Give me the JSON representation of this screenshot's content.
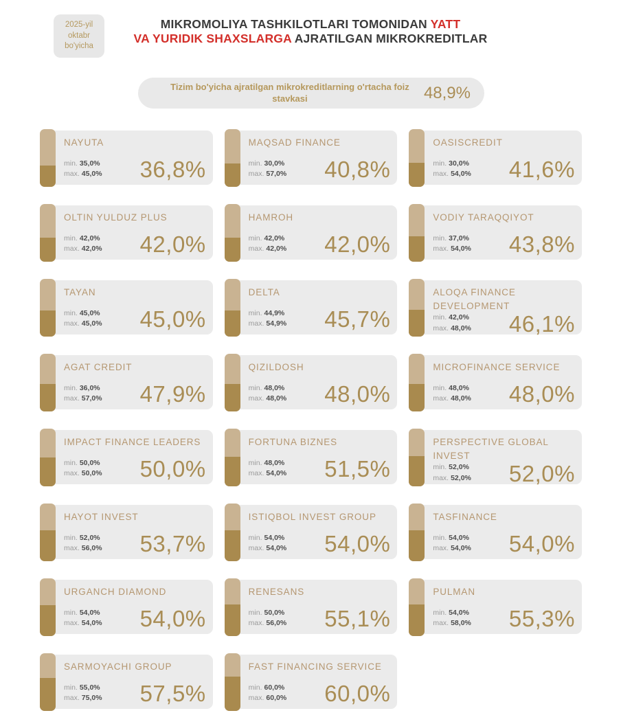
{
  "badge": {
    "line1": "2025-yil",
    "line2": "oktabr",
    "line3": "bo'yicha"
  },
  "title": {
    "line1_black": "MIKROMOLIYA TASHKILOTLARI TOMONIDAN ",
    "line1_red": "YATT",
    "line2_red": "VA YURIDIK SHAXSLARGA",
    "line2_black": " AJRATILGAN MIKROKREDITLAR"
  },
  "summary": {
    "label": "Tizim bo'yicha ajratilgan mikrokreditlarning o'rtacha foiz stavkasi",
    "value": "48,9%"
  },
  "labels": {
    "min": "min.",
    "max": "max."
  },
  "colors": {
    "gold_dark": "#a98a4e",
    "gold_light": "#c9b392",
    "gold_text": "#b59771",
    "red_accent": "#d32f2a",
    "card_bg": "#ebebeb",
    "title_text": "#3b3b3b"
  },
  "cards": [
    {
      "name": "NAYUTA",
      "min": "35,0%",
      "max": "45,0%",
      "rate": "36,8%"
    },
    {
      "name": "MAQSAD FINANCE",
      "min": "30,0%",
      "max": "57,0%",
      "rate": "40,8%"
    },
    {
      "name": "OASISCREDIT",
      "min": "30,0%",
      "max": "54,0%",
      "rate": "41,6%"
    },
    {
      "name": "OLTIN YULDUZ PLUS",
      "min": "42,0%",
      "max": "42,0%",
      "rate": "42,0%"
    },
    {
      "name": "HAMROH",
      "min": "42,0%",
      "max": "42,0%",
      "rate": "42,0%"
    },
    {
      "name": "VODIY TARAQQIYOT",
      "min": "37,0%",
      "max": "54,0%",
      "rate": "43,8%"
    },
    {
      "name": "TAYAN",
      "min": "45,0%",
      "max": "45,0%",
      "rate": "45,0%"
    },
    {
      "name": "DELTA",
      "min": "44,9%",
      "max": "54,9%",
      "rate": "45,7%"
    },
    {
      "name": "ALOQA FINANCE DEVELOPMENT",
      "min": "42,0%",
      "max": "48,0%",
      "rate": "46,1%"
    },
    {
      "name": "AGAT CREDIT",
      "min": "36,0%",
      "max": "57,0%",
      "rate": "47,9%"
    },
    {
      "name": "QIZILDOSH",
      "min": "48,0%",
      "max": "48,0%",
      "rate": "48,0%"
    },
    {
      "name": "MICROFINANCE SERVICE",
      "min": "48,0%",
      "max": "48,0%",
      "rate": "48,0%"
    },
    {
      "name": "IMPACT FINANCE LEADERS",
      "min": "50,0%",
      "max": "50,0%",
      "rate": "50,0%"
    },
    {
      "name": "FORTUNA BIZNES",
      "min": "48,0%",
      "max": "54,0%",
      "rate": "51,5%"
    },
    {
      "name": "PERSPECTIVE GLOBAL INVEST",
      "min": "52,0%",
      "max": "52,0%",
      "rate": "52,0%"
    },
    {
      "name": "HAYOT INVEST",
      "min": "52,0%",
      "max": "56,0%",
      "rate": "53,7%"
    },
    {
      "name": "ISTIQBOL INVEST GROUP",
      "min": "54,0%",
      "max": "54,0%",
      "rate": "54,0%"
    },
    {
      "name": "TASFINANCE",
      "min": "54,0%",
      "max": "54,0%",
      "rate": "54,0%"
    },
    {
      "name": "URGANCH DIAMOND",
      "min": "54,0%",
      "max": "54,0%",
      "rate": "54,0%"
    },
    {
      "name": "RENESANS",
      "min": "50,0%",
      "max": "56,0%",
      "rate": "55,1%"
    },
    {
      "name": "PULMAN",
      "min": "54,0%",
      "max": "58,0%",
      "rate": "55,3%"
    },
    {
      "name": "SARMOYACHI GROUP",
      "min": "55,0%",
      "max": "75,0%",
      "rate": "57,5%"
    },
    {
      "name": "FAST FINANCING SERVICE",
      "min": "60,0%",
      "max": "60,0%",
      "rate": "60,0%"
    }
  ],
  "chart_data": {
    "type": "table",
    "title": "MIKROMOLIYA TASHKILOTLARI TOMONIDAN YATT VA YURIDIK SHAXSLARGA AJRATILGAN MIKROKREDITLAR",
    "subtitle": "2025-yil oktabr bo'yicha",
    "system_average_label": "Tizim bo'yicha ajratilgan mikrokreditlarning o'rtacha foiz stavkasi",
    "system_average_percent": 48.9,
    "columns": [
      "organization",
      "min_percent",
      "max_percent",
      "avg_percent"
    ],
    "rows": [
      [
        "NAYUTA",
        35.0,
        45.0,
        36.8
      ],
      [
        "MAQSAD FINANCE",
        30.0,
        57.0,
        40.8
      ],
      [
        "OASISCREDIT",
        30.0,
        54.0,
        41.6
      ],
      [
        "OLTIN YULDUZ PLUS",
        42.0,
        42.0,
        42.0
      ],
      [
        "HAMROH",
        42.0,
        42.0,
        42.0
      ],
      [
        "VODIY TARAQQIYOT",
        37.0,
        54.0,
        43.8
      ],
      [
        "TAYAN",
        45.0,
        45.0,
        45.0
      ],
      [
        "DELTA",
        44.9,
        54.9,
        45.7
      ],
      [
        "ALOQA FINANCE DEVELOPMENT",
        42.0,
        48.0,
        46.1
      ],
      [
        "AGAT CREDIT",
        36.0,
        57.0,
        47.9
      ],
      [
        "QIZILDOSH",
        48.0,
        48.0,
        48.0
      ],
      [
        "MICROFINANCE SERVICE",
        48.0,
        48.0,
        48.0
      ],
      [
        "IMPACT FINANCE LEADERS",
        50.0,
        50.0,
        50.0
      ],
      [
        "FORTUNA BIZNES",
        48.0,
        54.0,
        51.5
      ],
      [
        "PERSPECTIVE GLOBAL INVEST",
        52.0,
        52.0,
        52.0
      ],
      [
        "HAYOT INVEST",
        52.0,
        56.0,
        53.7
      ],
      [
        "ISTIQBOL INVEST GROUP",
        54.0,
        54.0,
        54.0
      ],
      [
        "TASFINANCE",
        54.0,
        54.0,
        54.0
      ],
      [
        "URGANCH DIAMOND",
        54.0,
        54.0,
        54.0
      ],
      [
        "RENESANS",
        50.0,
        56.0,
        55.1
      ],
      [
        "PULMAN",
        54.0,
        58.0,
        55.3
      ],
      [
        "SARMOYACHI GROUP",
        55.0,
        75.0,
        57.5
      ],
      [
        "FAST FINANCING SERVICE",
        60.0,
        60.0,
        60.0
      ]
    ]
  }
}
